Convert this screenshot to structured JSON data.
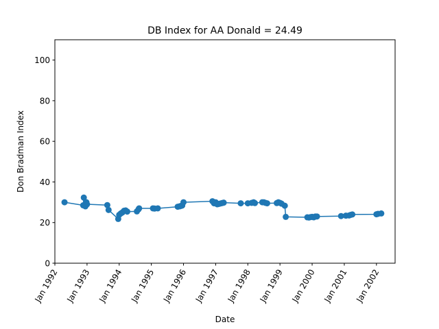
{
  "chart_data": {
    "type": "line",
    "title": "DB Index for AA Donald = 24.49",
    "xlabel": "Date",
    "ylabel": "Don Bradman Index",
    "ylim": [
      0,
      110
    ],
    "yticks": [
      0,
      20,
      40,
      60,
      80,
      100
    ],
    "xlim": [
      1992.0,
      2002.58
    ],
    "xticks": [
      {
        "value": 1992.0,
        "label": "Jan 1992"
      },
      {
        "value": 1993.0,
        "label": "Jan 1993"
      },
      {
        "value": 1994.0,
        "label": "Jan 1994"
      },
      {
        "value": 1995.0,
        "label": "Jan 1995"
      },
      {
        "value": 1996.0,
        "label": "Jan 1996"
      },
      {
        "value": 1997.0,
        "label": "Jan 1997"
      },
      {
        "value": 1998.0,
        "label": "Jan 1998"
      },
      {
        "value": 1999.0,
        "label": "Jan 1999"
      },
      {
        "value": 2000.0,
        "label": "Jan 2000"
      },
      {
        "value": 2001.0,
        "label": "Jan 2001"
      },
      {
        "value": 2002.0,
        "label": "Jan 2002"
      }
    ],
    "grid": false,
    "series": [
      {
        "name": "DB Index",
        "color": "#1f77b4",
        "marker": "circle",
        "x": [
          1992.3,
          1992.88,
          1992.9,
          1992.95,
          1992.98,
          1993.0,
          1993.63,
          1993.67,
          1993.97,
          1994.0,
          1994.05,
          1994.1,
          1994.15,
          1994.2,
          1994.25,
          1994.55,
          1994.6,
          1994.62,
          1995.05,
          1995.1,
          1995.2,
          1995.82,
          1995.88,
          1995.92,
          1995.96,
          1996.0,
          1996.9,
          1996.95,
          1997.0,
          1997.05,
          1997.1,
          1997.15,
          1997.2,
          1997.25,
          1997.78,
          1998.0,
          1998.12,
          1998.18,
          1998.22,
          1998.45,
          1998.5,
          1998.55,
          1998.6,
          1998.9,
          1998.95,
          1999.0,
          1999.05,
          1999.15,
          1999.18,
          1999.85,
          1999.9,
          1999.95,
          2000.0,
          2000.05,
          2000.1,
          2000.15,
          2000.9,
          2001.05,
          2001.15,
          2001.2,
          2001.25,
          2002.0,
          2002.05,
          2002.15
        ],
        "y": [
          30.0,
          28.5,
          32.3,
          28.0,
          30.0,
          29.0,
          28.6,
          26.2,
          21.8,
          23.8,
          24.5,
          25.0,
          25.8,
          26.0,
          25.4,
          25.5,
          26.5,
          27.0,
          27.0,
          26.9,
          27.0,
          27.8,
          28.0,
          28.2,
          28.4,
          30.0,
          30.5,
          29.5,
          30.0,
          29.0,
          29.2,
          29.4,
          29.6,
          29.8,
          29.5,
          29.5,
          29.7,
          30.0,
          29.6,
          30.0,
          30.0,
          29.7,
          29.5,
          29.6,
          30.0,
          29.7,
          29.3,
          28.3,
          22.8,
          22.6,
          22.5,
          22.7,
          22.8,
          22.6,
          23.0,
          23.0,
          23.2,
          23.4,
          23.5,
          23.8,
          24.0,
          24.1,
          24.3,
          24.5
        ]
      }
    ]
  }
}
